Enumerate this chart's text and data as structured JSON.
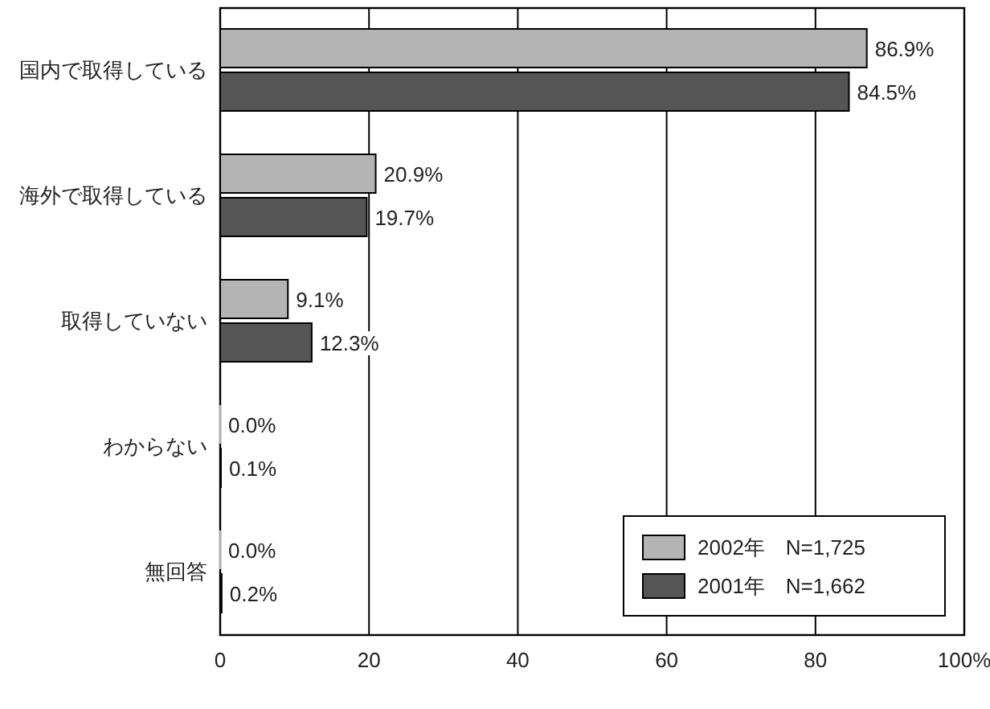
{
  "chart_data": {
    "type": "bar",
    "orientation": "horizontal",
    "categories": [
      "国内で取得している",
      "海外で取得している",
      "取得していない",
      "わからない",
      "無回答"
    ],
    "series": [
      {
        "name": "2002年　N=1,725",
        "color": "#b4b4b4",
        "values": [
          86.9,
          20.9,
          9.1,
          0.0,
          0.0
        ],
        "value_labels": [
          "86.9%",
          "20.9%",
          "9.1%",
          "0.0%",
          "0.0%"
        ]
      },
      {
        "name": "2001年　N=1,662",
        "color": "#555555",
        "values": [
          84.5,
          19.7,
          12.3,
          0.1,
          0.2
        ],
        "value_labels": [
          "84.5%",
          "19.7%",
          "12.3%",
          "0.1%",
          "0.2%"
        ]
      }
    ],
    "xlim": [
      0,
      100
    ],
    "xticks": [
      0,
      20,
      40,
      60,
      80,
      {
        "value": 100,
        "label": "100%"
      }
    ],
    "grid": "x",
    "legend": "bottom right"
  }
}
